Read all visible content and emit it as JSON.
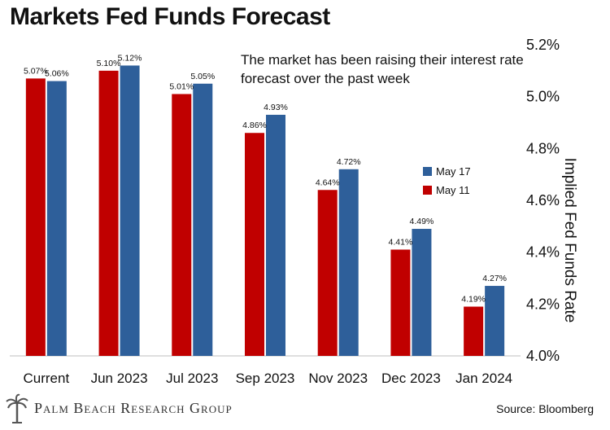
{
  "title": "Markets Fed Funds Forecast",
  "annotation": "The market has been raising their interest rate forecast over the past week",
  "footer": {
    "brand": "Palm Beach Research Group",
    "source": "Source: Bloomberg"
  },
  "colors": {
    "may11": "#c00000",
    "may17": "#2e5f9a"
  },
  "chart_data": {
    "type": "bar",
    "title": "Markets Fed Funds Forecast",
    "ylabel": "Implied Fed Funds Rate",
    "xlabel": "",
    "ylim": [
      4.0,
      5.2
    ],
    "y_ticks": [
      "4.0%",
      "4.2%",
      "4.4%",
      "4.6%",
      "4.8%",
      "5.0%",
      "5.2%"
    ],
    "y_tick_values": [
      4.0,
      4.2,
      4.4,
      4.6,
      4.8,
      5.0,
      5.2
    ],
    "categories": [
      "Current",
      "Jun 2023",
      "Jul 2023",
      "Sep 2023",
      "Nov 2023",
      "Dec 2023",
      "Jan 2024"
    ],
    "series": [
      {
        "name": "May 11",
        "color": "#c00000",
        "values": [
          5.07,
          5.1,
          5.01,
          4.86,
          4.64,
          4.41,
          4.19
        ],
        "labels": [
          "5.07%",
          "5.10%",
          "5.01%",
          "4.86%",
          "4.64%",
          "4.41%",
          "4.19%"
        ]
      },
      {
        "name": "May 17",
        "color": "#2e5f9a",
        "values": [
          5.06,
          5.12,
          5.05,
          4.93,
          4.72,
          4.49,
          4.27
        ],
        "labels": [
          "5.06%",
          "5.12%",
          "5.05%",
          "4.93%",
          "4.72%",
          "4.49%",
          "4.27%"
        ]
      }
    ],
    "legend": {
      "position": "right",
      "items": [
        "May 17",
        "May 11"
      ]
    },
    "grid": false
  }
}
